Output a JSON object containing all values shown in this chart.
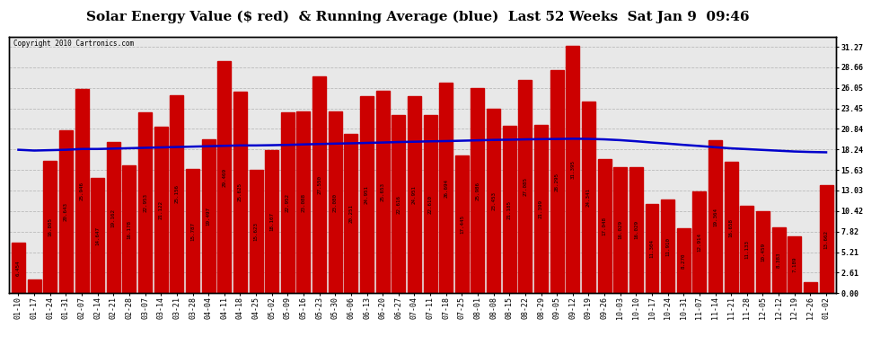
{
  "title": "Solar Energy Value ($ red)  & Running Average (blue)  Last 52 Weeks  Sat Jan 9  09:46",
  "copyright": "Copyright 2010 Cartronics.com",
  "bar_color": "#cc0000",
  "line_color": "#0000cc",
  "background_color": "#ffffff",
  "plot_bg_color": "#e8e8e8",
  "grid_color": "#aaaaaa",
  "categories": [
    "01-10",
    "01-17",
    "01-24",
    "01-31",
    "02-07",
    "02-14",
    "02-21",
    "02-28",
    "03-07",
    "03-14",
    "03-21",
    "03-28",
    "04-04",
    "04-11",
    "04-18",
    "04-25",
    "05-02",
    "05-09",
    "05-16",
    "05-23",
    "05-30",
    "06-06",
    "06-13",
    "06-20",
    "06-27",
    "07-04",
    "07-11",
    "07-18",
    "07-25",
    "08-01",
    "08-08",
    "08-15",
    "08-22",
    "08-29",
    "09-05",
    "09-12",
    "09-19",
    "09-26",
    "10-03",
    "10-10",
    "10-17",
    "10-24",
    "10-31",
    "11-07",
    "11-14",
    "11-21",
    "11-28",
    "12-05",
    "12-12",
    "12-19",
    "12-26",
    "01-02"
  ],
  "values": [
    6.454,
    1.772,
    16.805,
    20.643,
    25.946,
    14.647,
    19.162,
    16.178,
    22.953,
    21.122,
    25.156,
    15.787,
    19.497,
    29.469,
    25.625,
    15.623,
    18.107,
    22.952,
    23.088,
    27.55,
    23.08,
    20.251,
    24.951,
    25.653,
    22.616,
    24.951,
    22.61,
    26.694,
    17.445,
    25.986,
    23.453,
    21.185,
    27.085,
    21.399,
    28.295,
    31.395,
    24.341,
    17.048,
    16.029,
    16.029,
    11.304,
    11.91,
    8.27,
    12.914,
    19.364,
    16.658,
    11.133,
    10.459,
    8.383,
    7.189,
    1.364,
    13.662
  ],
  "running_avg": [
    18.2,
    18.1,
    18.15,
    18.2,
    18.3,
    18.3,
    18.35,
    18.4,
    18.45,
    18.5,
    18.55,
    18.6,
    18.65,
    18.7,
    18.75,
    18.75,
    18.78,
    18.82,
    18.88,
    18.93,
    18.98,
    19.02,
    19.07,
    19.12,
    19.18,
    19.22,
    19.27,
    19.3,
    19.35,
    19.4,
    19.45,
    19.48,
    19.52,
    19.55,
    19.57,
    19.6,
    19.58,
    19.52,
    19.42,
    19.28,
    19.12,
    18.98,
    18.82,
    18.68,
    18.52,
    18.38,
    18.28,
    18.18,
    18.08,
    17.98,
    17.92,
    17.88
  ],
  "yticks": [
    0.0,
    2.61,
    5.21,
    7.82,
    10.42,
    13.03,
    15.63,
    18.24,
    20.84,
    23.45,
    26.05,
    28.66,
    31.27
  ],
  "ylim": [
    0,
    32.5
  ],
  "title_fontsize": 11,
  "tick_fontsize": 6,
  "value_fontsize": 4.2
}
